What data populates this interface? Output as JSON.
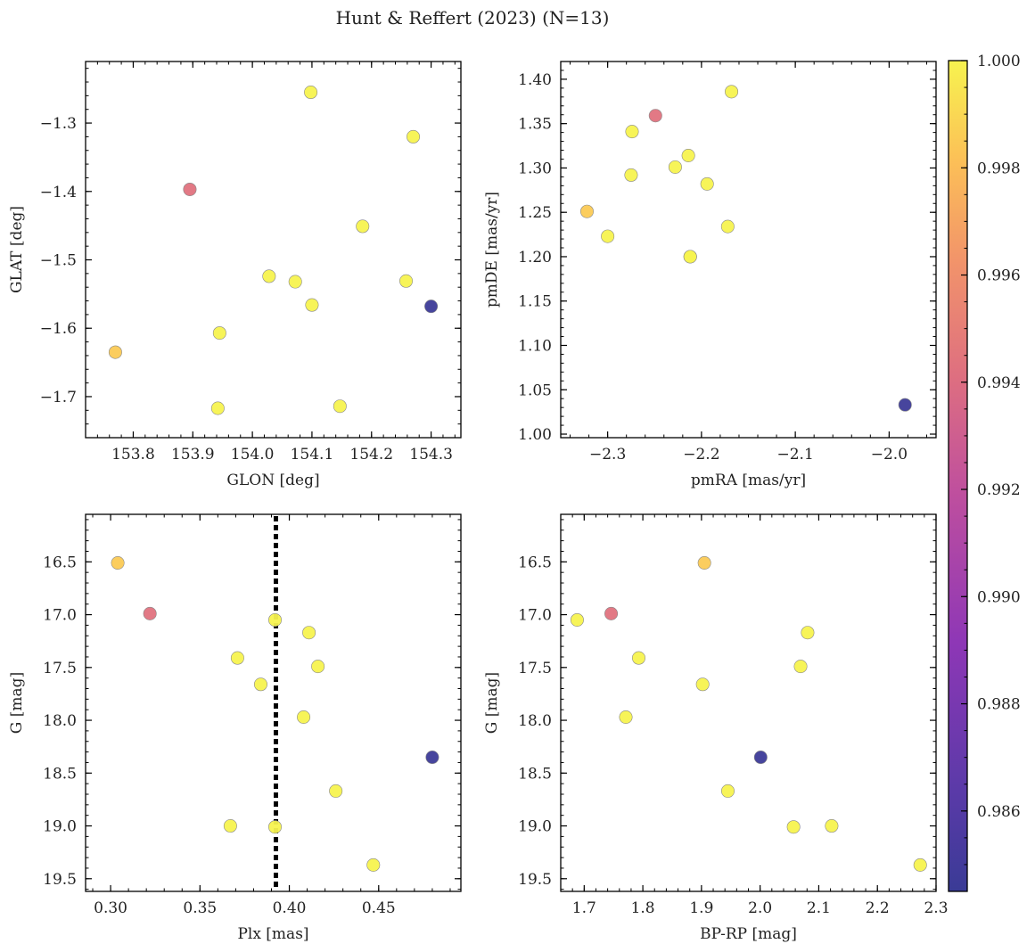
{
  "chart_data": {
    "suptitle": "Hunt & Reffert (2023) (N=13)",
    "colorbar": {
      "range": [
        0.9845,
        1.0
      ],
      "ticks": [
        0.986,
        0.988,
        0.99,
        0.992,
        0.994,
        0.996,
        0.998,
        1.0
      ],
      "tick_labels": [
        "0.986",
        "0.988",
        "0.990",
        "0.992",
        "0.994",
        "0.996",
        "0.998",
        "1.000"
      ],
      "colormap": "plasma"
    },
    "members": {
      "glon": [
        153.77,
        153.895,
        153.945,
        153.942,
        154.028,
        154.072,
        154.1,
        154.098,
        154.147,
        154.185,
        154.258,
        154.27,
        154.3
      ],
      "glat": [
        -1.635,
        -1.397,
        -1.607,
        -1.717,
        -1.524,
        -1.532,
        -1.566,
        -1.255,
        -1.714,
        -1.451,
        -1.531,
        -1.32,
        -1.568
      ],
      "pmra": [
        -2.322,
        -2.249,
        -2.274,
        -2.3,
        -2.275,
        -2.212,
        -2.214,
        -2.228,
        -2.194,
        -2.172,
        -2.212,
        -2.168,
        -1.983
      ],
      "pmde": [
        1.251,
        1.359,
        1.341,
        1.223,
        1.292,
        1.2,
        1.314,
        1.301,
        1.282,
        1.234,
        1.2,
        1.386,
        1.033
      ],
      "plx": [
        0.304,
        0.322,
        0.367,
        0.371,
        0.384,
        0.392,
        0.392,
        0.408,
        0.411,
        0.416,
        0.426,
        0.447,
        0.48
      ],
      "g": [
        16.51,
        16.99,
        19.0,
        17.41,
        17.66,
        17.05,
        19.01,
        17.97,
        17.17,
        17.49,
        18.67,
        19.37,
        18.35
      ],
      "bp_rp": [
        1.905,
        1.746,
        2.122,
        1.793,
        1.902,
        1.688,
        2.057,
        1.771,
        2.081,
        2.069,
        1.945,
        2.273,
        2.001
      ],
      "prob": [
        0.9985,
        0.9943,
        1.0,
        1.0,
        1.0,
        1.0,
        1.0,
        1.0,
        1.0,
        1.0,
        1.0,
        1.0,
        0.9847
      ]
    },
    "panels": [
      {
        "type": "scatter",
        "x_key": "glon",
        "y_key": "glat",
        "xlabel": "GLON [deg]",
        "ylabel": "GLAT [deg]",
        "xlim": [
          153.72,
          154.35
        ],
        "ylim": [
          -1.76,
          -1.21
        ],
        "y_inverted": false,
        "xticks": [
          153.8,
          153.9,
          154.0,
          154.1,
          154.2,
          154.3
        ],
        "xtick_labels": [
          "153.8",
          "153.9",
          "154.0",
          "154.1",
          "154.2",
          "154.3"
        ],
        "yticks": [
          -1.3,
          -1.4,
          -1.5,
          -1.6,
          -1.7
        ],
        "ytick_labels": [
          "−1.3",
          "−1.4",
          "−1.5",
          "−1.6",
          "−1.7"
        ],
        "x_minor": 0.02,
        "y_minor": 0.02
      },
      {
        "type": "scatter",
        "x_key": "pmra",
        "y_key": "pmde",
        "xlabel": "pmRA [mas/yr]",
        "ylabel": "pmDE [mas/yr]",
        "xlim": [
          -2.35,
          -1.95
        ],
        "ylim": [
          0.996,
          1.42
        ],
        "y_inverted": false,
        "xticks": [
          -2.3,
          -2.2,
          -2.1,
          -2.0
        ],
        "xtick_labels": [
          "−2.3",
          "−2.2",
          "−2.1",
          "−2.0"
        ],
        "yticks": [
          1.0,
          1.05,
          1.1,
          1.15,
          1.2,
          1.25,
          1.3,
          1.35,
          1.4
        ],
        "ytick_labels": [
          "1.00",
          "1.05",
          "1.10",
          "1.15",
          "1.20",
          "1.25",
          "1.30",
          "1.35",
          "1.40"
        ],
        "x_minor": 0.02,
        "y_minor": 0.01
      },
      {
        "type": "scatter",
        "x_key": "plx",
        "y_key": "g",
        "xlabel": "Plx [mas]",
        "ylabel": "G [mag]",
        "xlim": [
          0.286,
          0.496
        ],
        "ylim": [
          16.05,
          19.62
        ],
        "y_inverted": true,
        "xticks": [
          0.3,
          0.35,
          0.4,
          0.45
        ],
        "xtick_labels": [
          "0.30",
          "0.35",
          "0.40",
          "0.45"
        ],
        "yticks": [
          16.5,
          17.0,
          17.5,
          18.0,
          18.5,
          19.0,
          19.5
        ],
        "ytick_labels": [
          "16.5",
          "17.0",
          "17.5",
          "18.0",
          "18.5",
          "19.0",
          "19.5"
        ],
        "x_minor": 0.01,
        "y_minor": 0.1,
        "vline": 0.3925
      },
      {
        "type": "scatter",
        "x_key": "bp_rp",
        "y_key": "g",
        "xlabel": "BP-RP [mag]",
        "ylabel": "G [mag]",
        "xlim": [
          1.66,
          2.3
        ],
        "ylim": [
          16.05,
          19.62
        ],
        "y_inverted": true,
        "xticks": [
          1.7,
          1.8,
          1.9,
          2.0,
          2.1,
          2.2,
          2.3
        ],
        "xtick_labels": [
          "1.7",
          "1.8",
          "1.9",
          "2.0",
          "2.1",
          "2.2",
          "2.3"
        ],
        "yticks": [
          16.5,
          17.0,
          17.5,
          18.0,
          18.5,
          19.0,
          19.5
        ],
        "ytick_labels": [
          "16.5",
          "17.0",
          "17.5",
          "18.0",
          "18.5",
          "19.0",
          "19.5"
        ],
        "x_minor": 0.02,
        "y_minor": 0.1
      }
    ]
  }
}
